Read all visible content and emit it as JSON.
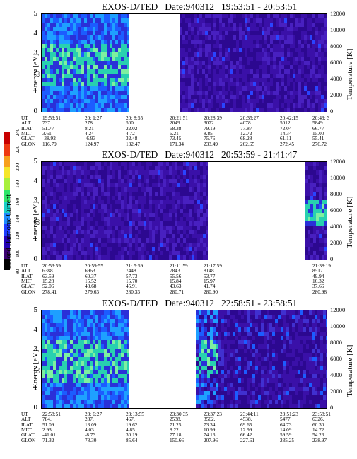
{
  "colorbar": {
    "label": "Second Harmonic Current",
    "ticks": [
      "80",
      "100",
      "120",
      "140",
      "160",
      "180",
      "200",
      "220",
      "240"
    ],
    "colors": [
      "#000000",
      "#3a0070",
      "#2300b8",
      "#1c3cff",
      "#1e8cff",
      "#19d0c8",
      "#2ee66a",
      "#a8f03c",
      "#f5e62a",
      "#f7a01c",
      "#ee3a12",
      "#c80000"
    ]
  },
  "ephemeris_labels": [
    "UT",
    "ALT",
    "ILAT",
    "MLT",
    "GLAT",
    "GLON"
  ],
  "panels": [
    {
      "satellite": "EXOS-D/TED",
      "date": "Date:940312",
      "time_range": "19:53:51 - 20:53:51",
      "ylabel": "Energy [eV]",
      "y2label": "Temperature [K]",
      "yticks": [
        "5",
        "4",
        "3",
        "2",
        "1",
        "0"
      ],
      "y2ticks": [
        "12000",
        "10000",
        "8000",
        "6000",
        "4000",
        "2000",
        "0"
      ],
      "ephemeris": [
        [
          "19:53:51",
          "737.",
          "51.77",
          "3.61",
          "-38.92",
          "116.79"
        ],
        [
          "20: 1:27",
          "278.",
          "8.21",
          "4.24",
          "-6.93",
          "124.97"
        ],
        [
          "20: 8:55",
          "500.",
          "22.02",
          "4.72",
          "32.48",
          "132.47"
        ],
        [
          "20:21:51",
          "2049.",
          "68.38",
          "6.21",
          "73.45",
          "171.34"
        ],
        [
          "20:28:39",
          "3072.",
          "79.19",
          "8.85",
          "75.76",
          "233.49"
        ],
        [
          "20:35:27",
          "4078.",
          "77.87",
          "12.72",
          "68.28",
          "262.65"
        ],
        [
          "20:42:15",
          "5012.",
          "72.04",
          "14.34",
          "61.11",
          "272.45"
        ],
        [
          "20:49: 3",
          "5849.",
          "66.77",
          "15.00",
          "55.41",
          "276.72"
        ]
      ]
    },
    {
      "satellite": "EXOS-D/TED",
      "date": "Date:940312",
      "time_range": "20:53:59 - 21:41:47",
      "ylabel": "Energy [eV]",
      "y2label": "Temperature [K]",
      "yticks": [
        "5",
        "4",
        "3",
        "2",
        "1",
        "0"
      ],
      "y2ticks": [
        "12000",
        "10000",
        "8000",
        "6000",
        "4000",
        "2000",
        "0"
      ],
      "ephemeris": [
        [
          "20:53:59",
          "6388.",
          "63.59",
          "15.28",
          "52.06",
          "278.41"
        ],
        [
          "20:59:55",
          "6963.",
          "60.37",
          "15.52",
          "48.68",
          "279.63"
        ],
        [
          "21: 5:59",
          "7448.",
          "57.73",
          "15.70",
          "45.91",
          "280.33"
        ],
        [
          "21:11:59",
          "7843.",
          "55.56",
          "15.84",
          "43.63",
          "280.71"
        ],
        [
          "21:17:59",
          "8148.",
          "53.77",
          "15.97",
          "41.74",
          "280.90"
        ],
        [
          "21:38:19",
          "8517.",
          "49.94",
          "16.32",
          "37.66",
          "280.98"
        ]
      ]
    },
    {
      "satellite": "EXOS-D/TED",
      "date": "Date:940312",
      "time_range": "22:58:51 - 23:58:51",
      "ylabel": "Energy [eV]",
      "y2label": "Temperature [K]",
      "yticks": [
        "5",
        "4",
        "3",
        "2",
        "1",
        "0"
      ],
      "y2ticks": [
        "12000",
        "10000",
        "8000",
        "6000",
        "4000",
        "2000",
        "0"
      ],
      "ephemeris": [
        [
          "22:58:51",
          "784.",
          "51.09",
          "2.93",
          "-41.01",
          "71.32"
        ],
        [
          "23: 6:27",
          "287.",
          "13.09",
          "4.03",
          "-8.73",
          "78.30"
        ],
        [
          "23:13:55",
          "467.",
          "19.62",
          "4.85",
          "30.19",
          "85.64"
        ],
        [
          "23:30:35",
          "2538.",
          "71.25",
          "8.22",
          "77.18",
          "150.66"
        ],
        [
          "23:37:23",
          "3562.",
          "73.34",
          "10.99",
          "74.16",
          "207.96"
        ],
        [
          "23:44:11",
          "4538.",
          "69.65",
          "12.99",
          "66.42",
          "227.61"
        ],
        [
          "23:51:23",
          "5477.",
          "64.73",
          "14.09",
          "59.59",
          "235.25"
        ],
        [
          "23:58:51",
          "6326.",
          "60.30",
          "14.72",
          "54.26",
          "238.97"
        ]
      ]
    }
  ],
  "chart_data": [
    {
      "type": "heatmap",
      "title": "EXOS-D/TED Date:940312 19:53:51 - 20:53:51",
      "ylabel": "Energy [eV]",
      "y2label": "Temperature [K]",
      "ylim": [
        0,
        5
      ],
      "y2lim": [
        0,
        12000
      ],
      "x_ut_ticks": [
        "19:53:51",
        "20: 1:27",
        "20: 8:55",
        "20:21:51",
        "20:28:39",
        "20:35:27",
        "20:42:15",
        "20:49: 3"
      ],
      "data_gap": [
        "20:10",
        "20:21"
      ],
      "zlabel": "Second Harmonic Current",
      "zlim": [
        80,
        240
      ]
    },
    {
      "type": "heatmap",
      "title": "EXOS-D/TED Date:940312 20:53:59 - 21:41:47",
      "ylabel": "Energy [eV]",
      "y2label": "Temperature [K]",
      "ylim": [
        0,
        5
      ],
      "y2lim": [
        0,
        12000
      ],
      "x_ut_ticks": [
        "20:53:59",
        "20:59:55",
        "21: 5:59",
        "21:11:59",
        "21:17:59",
        "21:38:19"
      ],
      "data_gap": [
        "21:19",
        "21:37"
      ],
      "zlabel": "Second Harmonic Current",
      "zlim": [
        80,
        240
      ]
    },
    {
      "type": "heatmap",
      "title": "EXOS-D/TED Date:940312 22:58:51 - 23:58:51",
      "ylabel": "Energy [eV]",
      "y2label": "Temperature [K]",
      "ylim": [
        0,
        5
      ],
      "y2lim": [
        0,
        12000
      ],
      "x_ut_ticks": [
        "22:58:51",
        "23: 6:27",
        "23:13:55",
        "23:30:35",
        "23:37:23",
        "23:44:11",
        "23:51:23",
        "23:58:51"
      ],
      "data_gap": [
        "23:15",
        "23:28"
      ],
      "zlabel": "Second Harmonic Current",
      "zlim": [
        80,
        240
      ]
    }
  ]
}
